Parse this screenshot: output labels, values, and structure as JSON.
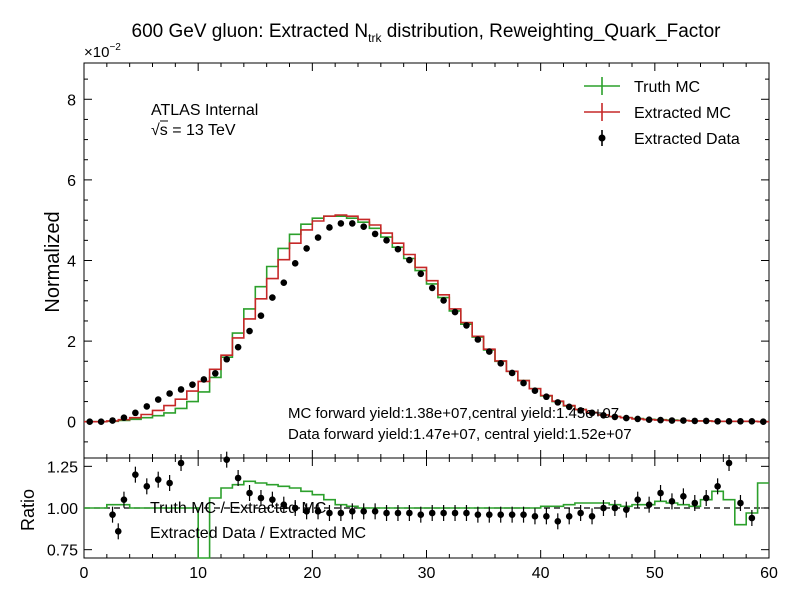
{
  "chart_data": [
    {
      "type": "line",
      "panel": "main",
      "title": "600 GeV gluon: Extracted N",
      "title_sub": "trk",
      "title_tail": " distribution, Reweighting_Quark_Factor",
      "ylabel": "Normalized",
      "y_multiplier": "×10",
      "y_multiplier_exp": "−2",
      "xlim": [
        0,
        60
      ],
      "ylim": [
        -0.9,
        8.9
      ],
      "y_scale_note": "values in units of 1e-2",
      "yticks": [
        0,
        2,
        4,
        6,
        8
      ],
      "yticklabels": [
        "0",
        "2",
        "4",
        "6",
        "8"
      ],
      "grid": false,
      "legend_position": "top-right",
      "annotations": {
        "experiment": "ATLAS Internal",
        "energy_sqrt": "√s",
        "energy_value": " = 13 TeV",
        "mc_yield": "MC forward yield:1.38e+07,central yield:1.45e+07",
        "data_yield": "Data forward yield:1.47e+07, central yield:1.52e+07"
      },
      "legend": [
        {
          "label": "Truth MC",
          "marker": "step-errorbar",
          "color": "#2ca02c"
        },
        {
          "label": "Extracted MC",
          "marker": "step-errorbar",
          "color": "#c62828"
        },
        {
          "label": "Extracted Data",
          "marker": "point-errorbar",
          "color": "#000000"
        }
      ],
      "bin_edges": [
        0,
        1,
        2,
        3,
        4,
        5,
        6,
        7,
        8,
        9,
        10,
        11,
        12,
        13,
        14,
        15,
        16,
        17,
        18,
        19,
        20,
        21,
        22,
        23,
        24,
        25,
        26,
        27,
        28,
        29,
        30,
        31,
        32,
        33,
        34,
        35,
        36,
        37,
        38,
        39,
        40,
        41,
        42,
        43,
        44,
        45,
        46,
        47,
        48,
        49,
        50,
        51,
        52,
        53,
        54,
        55,
        56,
        57,
        58,
        59,
        60
      ],
      "series": [
        {
          "name": "Truth MC",
          "color": "#2ca02c",
          "style": "step",
          "values": [
            0.0,
            0.0,
            0.01,
            0.03,
            0.06,
            0.1,
            0.15,
            0.22,
            0.33,
            0.5,
            0.74,
            1.1,
            1.6,
            2.2,
            2.8,
            3.35,
            3.85,
            4.3,
            4.65,
            4.9,
            5.05,
            5.1,
            5.1,
            5.05,
            4.95,
            4.8,
            4.58,
            4.33,
            4.05,
            3.75,
            3.42,
            3.08,
            2.75,
            2.42,
            2.1,
            1.78,
            1.5,
            1.25,
            1.02,
            0.82,
            0.64,
            0.5,
            0.39,
            0.3,
            0.23,
            0.17,
            0.13,
            0.1,
            0.08,
            0.06,
            0.05,
            0.04,
            0.03,
            0.02,
            0.02,
            0.01,
            0.01,
            0.01,
            0.01,
            0.0
          ]
        },
        {
          "name": "Extracted MC",
          "color": "#c62828",
          "style": "step",
          "values": [
            0.0,
            0.0,
            0.02,
            0.05,
            0.1,
            0.18,
            0.28,
            0.4,
            0.56,
            0.76,
            1.0,
            1.3,
            1.65,
            2.08,
            2.55,
            3.05,
            3.55,
            4.02,
            4.43,
            4.76,
            4.98,
            5.1,
            5.13,
            5.1,
            5.02,
            4.88,
            4.68,
            4.43,
            4.15,
            3.83,
            3.5,
            3.15,
            2.8,
            2.46,
            2.12,
            1.8,
            1.51,
            1.25,
            1.02,
            0.82,
            0.65,
            0.51,
            0.4,
            0.3,
            0.23,
            0.17,
            0.13,
            0.1,
            0.07,
            0.05,
            0.04,
            0.03,
            0.03,
            0.02,
            0.02,
            0.01,
            0.01,
            0.01,
            0.01,
            0.0
          ]
        },
        {
          "name": "Extracted Data",
          "color": "#000000",
          "style": "points",
          "x": [
            0.5,
            1.5,
            2.5,
            3.5,
            4.5,
            5.5,
            6.5,
            7.5,
            8.5,
            9.5,
            10.5,
            11.5,
            12.5,
            13.5,
            14.5,
            15.5,
            16.5,
            17.5,
            18.5,
            19.5,
            20.5,
            21.5,
            22.5,
            23.5,
            24.5,
            25.5,
            26.5,
            27.5,
            28.5,
            29.5,
            30.5,
            31.5,
            32.5,
            33.5,
            34.5,
            35.5,
            36.5,
            37.5,
            38.5,
            39.5,
            40.5,
            41.5,
            42.5,
            43.5,
            44.5,
            45.5,
            46.5,
            47.5,
            48.5,
            49.5,
            50.5,
            51.5,
            52.5,
            53.5,
            54.5,
            55.5,
            56.5,
            57.5,
            58.5,
            59.5
          ],
          "values": [
            0.0,
            0.0,
            0.03,
            0.1,
            0.22,
            0.38,
            0.55,
            0.7,
            0.8,
            0.92,
            1.05,
            1.2,
            1.55,
            1.85,
            2.25,
            2.63,
            3.08,
            3.45,
            3.93,
            4.3,
            4.57,
            4.82,
            4.92,
            4.92,
            4.84,
            4.66,
            4.5,
            4.28,
            4.01,
            3.67,
            3.32,
            3.01,
            2.72,
            2.39,
            2.04,
            1.74,
            1.45,
            1.21,
            0.96,
            0.77,
            0.62,
            0.48,
            0.37,
            0.28,
            0.22,
            0.16,
            0.12,
            0.09,
            0.07,
            0.05,
            0.04,
            0.03,
            0.03,
            0.02,
            0.02,
            0.01,
            0.01,
            0.01,
            0.01,
            0.0
          ]
        }
      ]
    },
    {
      "type": "line",
      "panel": "ratio",
      "xlabel": "",
      "ylabel": "Ratio",
      "xlim": [
        0,
        60
      ],
      "ylim": [
        0.7,
        1.3
      ],
      "xticks": [
        0,
        10,
        20,
        30,
        40,
        50,
        60
      ],
      "xticklabels": [
        "0",
        "10",
        "20",
        "30",
        "40",
        "50",
        "60"
      ],
      "yticks": [
        0.75,
        1.0,
        1.25
      ],
      "yticklabels": [
        "0.75",
        "1.00",
        "1.25"
      ],
      "reference_line": 1.0,
      "grid": false,
      "labels": {
        "truth_ratio": "Truth MC / Extracted MC",
        "data_ratio": "Extracted Data / Extracted MC"
      },
      "series": [
        {
          "name": "Truth MC / Extracted MC",
          "color": "#2ca02c",
          "style": "step",
          "values": [
            1.0,
            1.0,
            1.02,
            1.02,
            1.0,
            1.0,
            1.0,
            1.0,
            1.0,
            1.0,
            0.65,
            1.06,
            1.12,
            1.14,
            1.16,
            1.15,
            1.14,
            1.13,
            1.12,
            1.1,
            1.08,
            1.05,
            1.02,
            1.01,
            1.0,
            1.0,
            1.0,
            1.0,
            1.0,
            1.0,
            1.0,
            1.0,
            1.0,
            1.0,
            1.0,
            1.0,
            1.0,
            1.0,
            1.0,
            1.0,
            1.01,
            1.01,
            1.02,
            1.03,
            1.03,
            1.03,
            1.02,
            1.01,
            1.02,
            1.02,
            1.04,
            1.03,
            1.02,
            1.01,
            1.05,
            1.1,
            1.05,
            0.9,
            0.97,
            1.15
          ]
        },
        {
          "name": "Extracted Data / Extracted MC",
          "color": "#000000",
          "style": "points",
          "x": [
            2.5,
            3.0,
            3.5,
            4.5,
            5.5,
            6.5,
            7.5,
            8.5,
            12.5,
            13.5,
            14.5,
            15.5,
            16.5,
            17.5,
            18.5,
            19.5,
            20.5,
            21.5,
            22.5,
            23.5,
            24.5,
            25.5,
            26.5,
            27.5,
            28.5,
            29.5,
            30.5,
            31.5,
            32.5,
            33.5,
            34.5,
            35.5,
            36.5,
            37.5,
            38.5,
            39.5,
            40.5,
            41.5,
            42.5,
            43.5,
            44.5,
            45.5,
            46.5,
            47.5,
            48.5,
            49.5,
            50.5,
            51.5,
            52.5,
            53.5,
            54.5,
            55.5,
            56.5,
            57.5,
            58.5
          ],
          "values": [
            0.96,
            0.86,
            1.05,
            1.2,
            1.13,
            1.17,
            1.15,
            1.27,
            1.29,
            1.18,
            1.09,
            1.06,
            1.05,
            1.02,
            1.0,
            0.98,
            0.98,
            0.97,
            0.97,
            0.98,
            0.98,
            0.98,
            0.97,
            0.97,
            0.97,
            0.96,
            0.97,
            0.97,
            0.97,
            0.97,
            0.96,
            0.96,
            0.96,
            0.96,
            0.96,
            0.95,
            0.95,
            0.92,
            0.95,
            0.97,
            0.95,
            1.0,
            1.0,
            0.99,
            1.05,
            1.02,
            1.09,
            1.04,
            1.07,
            1.03,
            1.06,
            1.13,
            1.27,
            1.03,
            0.94
          ]
        }
      ]
    }
  ]
}
